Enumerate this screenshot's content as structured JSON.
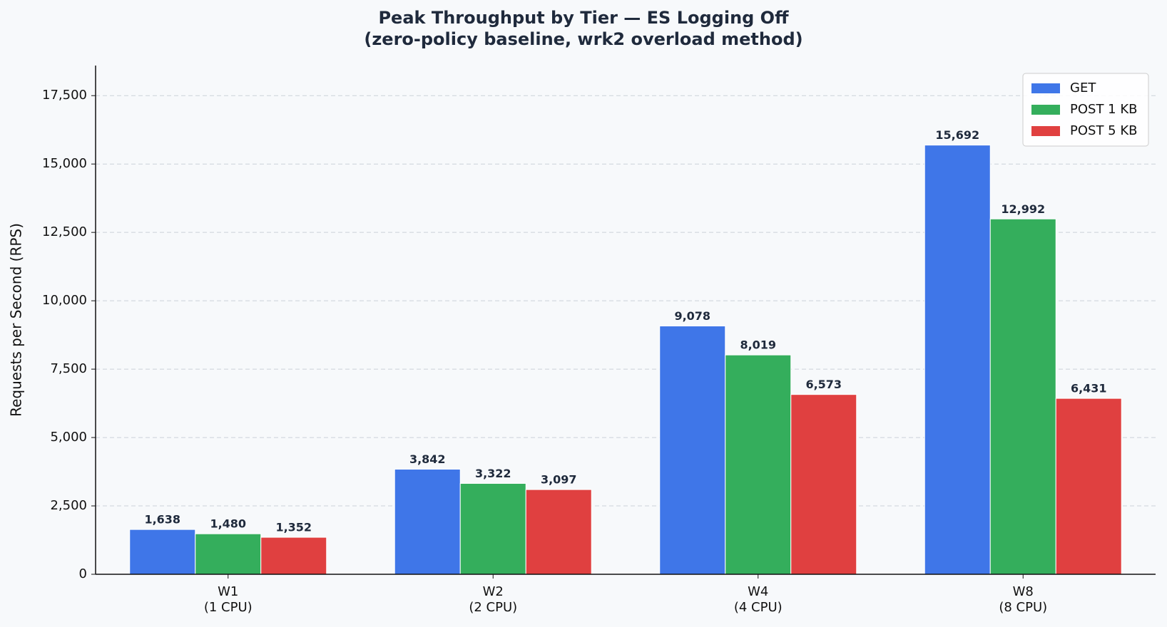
{
  "chart_data": {
    "type": "bar",
    "title": "Peak Throughput by Tier — ES Logging Off",
    "subtitle": "(zero-policy baseline, wrk2 overload method)",
    "y_label": "Requests per Second (RPS)",
    "categories": [
      "W1\n(1 CPU)",
      "W2\n(2 CPU)",
      "W4\n(4 CPU)",
      "W8\n(8 CPU)"
    ],
    "series": [
      {
        "name": "GET",
        "color": "#3f76e8",
        "values": [
          1638,
          3842,
          9078,
          15692
        ],
        "value_labels": [
          "1,638",
          "3,842",
          "9,078",
          "15,692"
        ]
      },
      {
        "name": "POST 1 KB",
        "color": "#34ae5c",
        "values": [
          1480,
          3322,
          8019,
          12992
        ],
        "value_labels": [
          "1,480",
          "3,322",
          "8,019",
          "12,992"
        ]
      },
      {
        "name": "POST 5 KB",
        "color": "#e04040",
        "values": [
          1352,
          3097,
          6573,
          6431
        ],
        "value_labels": [
          "1,352",
          "3,097",
          "6,573",
          "6,431"
        ]
      }
    ],
    "ylim": [
      0,
      18600
    ],
    "yticks": [
      0,
      {
        "value": 2500,
        "label": "2,500"
      },
      {
        "value": 5000,
        "label": "5,000"
      },
      {
        "value": 7500,
        "label": "7,500"
      },
      {
        "value": 10000,
        "label": "10,000"
      },
      {
        "value": 12500,
        "label": "12,500"
      },
      {
        "value": 15000,
        "label": "15,000"
      },
      {
        "value": 17500,
        "label": "17,500"
      }
    ],
    "grid": true,
    "legend": "upper-right"
  }
}
